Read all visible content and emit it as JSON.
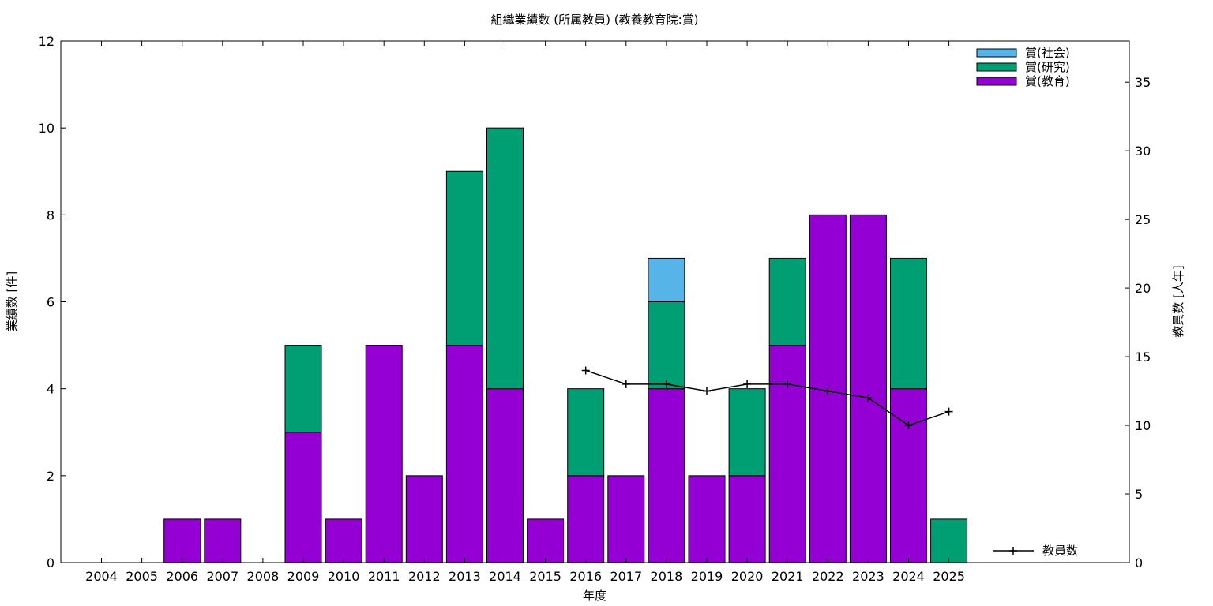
{
  "chart_data": {
    "type": "bar",
    "stacked": true,
    "title": "組織業績数 (所属教員) (教養教育院:賞)",
    "xlabel": "年度",
    "ylabel": "業績数 [件]",
    "y2label": "教員数 [人年]",
    "ylim": [
      0,
      12
    ],
    "y2lim": [
      0,
      38
    ],
    "yticks": [
      "0",
      "2",
      "4",
      "6",
      "8",
      "10",
      "12"
    ],
    "y2ticks": [
      "0",
      "5",
      "10",
      "15",
      "20",
      "25",
      "30",
      "35"
    ],
    "grid": false,
    "legend_position": "top-right",
    "categories": [
      "2004",
      "2005",
      "2006",
      "2007",
      "2008",
      "2009",
      "2010",
      "2011",
      "2012",
      "2013",
      "2014",
      "2015",
      "2016",
      "2017",
      "2018",
      "2019",
      "2020",
      "2021",
      "2022",
      "2023",
      "2024",
      "2025"
    ],
    "series": [
      {
        "name": "賞(教育)",
        "color": "#9400d3",
        "values": [
          0,
          0,
          1,
          1,
          0,
          3,
          1,
          5,
          2,
          5,
          4,
          1,
          2,
          2,
          4,
          2,
          2,
          5,
          8,
          8,
          4,
          0
        ]
      },
      {
        "name": "賞(研究)",
        "color": "#009e73",
        "values": [
          0,
          0,
          0,
          0,
          0,
          2,
          0,
          0,
          0,
          4,
          6,
          0,
          2,
          0,
          2,
          0,
          2,
          2,
          0,
          0,
          3,
          1
        ]
      },
      {
        "name": "賞(社会)",
        "color": "#56b4e9",
        "values": [
          0,
          0,
          0,
          0,
          0,
          0,
          0,
          0,
          0,
          0,
          0,
          0,
          0,
          0,
          1,
          0,
          0,
          0,
          0,
          0,
          0,
          0
        ]
      }
    ],
    "line_series": {
      "name": "教員数",
      "color": "#000000",
      "axis": "y2",
      "x": [
        "2016",
        "2017",
        "2018",
        "2019",
        "2020",
        "2021",
        "2022",
        "2023",
        "2024",
        "2025"
      ],
      "values": [
        14,
        13,
        13,
        12.5,
        13,
        13,
        12.5,
        12,
        10,
        11
      ]
    }
  }
}
